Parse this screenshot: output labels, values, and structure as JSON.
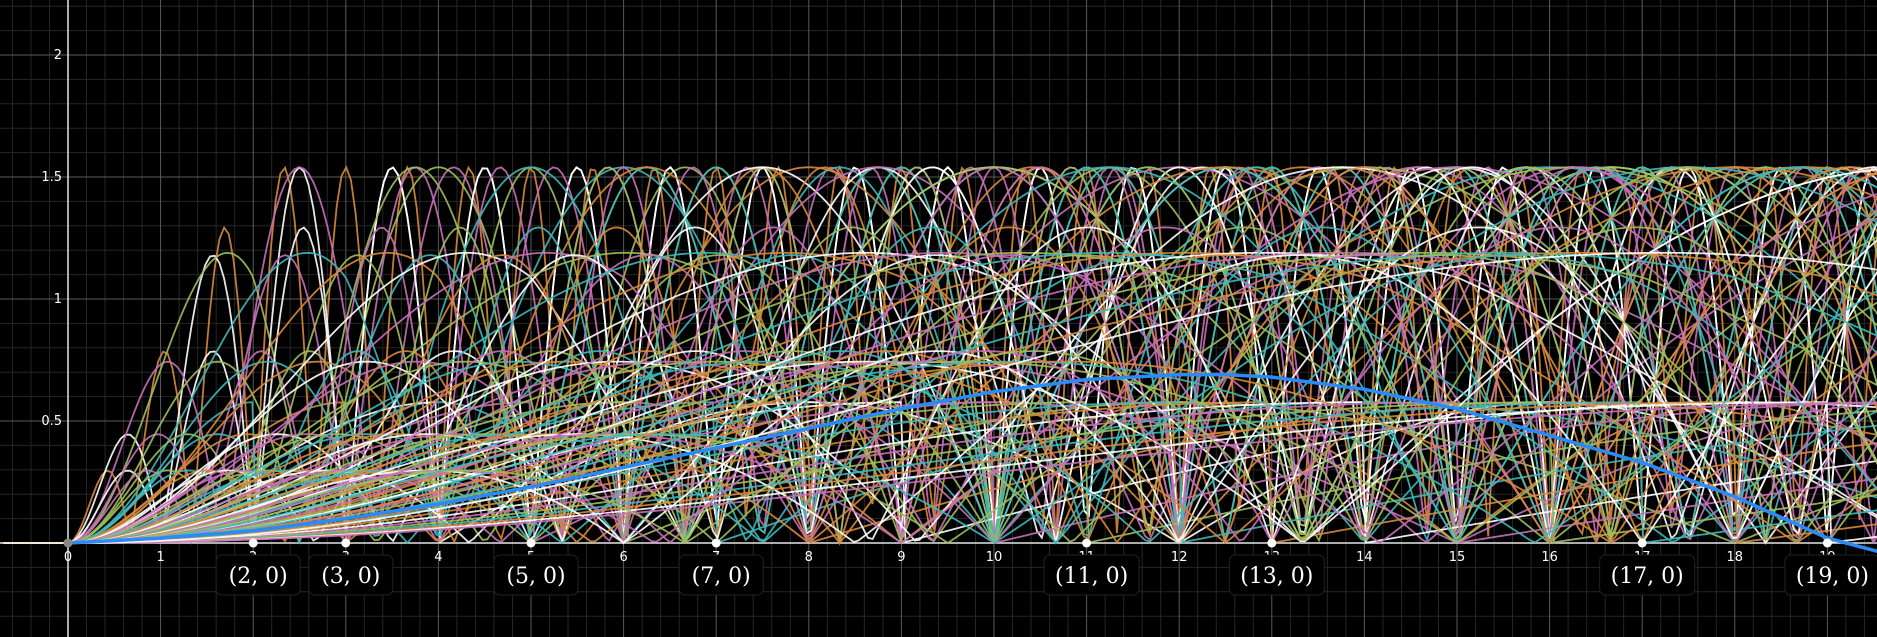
{
  "chart_data": {
    "type": "line",
    "title": "",
    "xlabel": "",
    "ylabel": "",
    "xlim": [
      -0.7,
      19.6
    ],
    "ylim": [
      -0.38,
      2.22
    ],
    "grid": true,
    "x_ticks": [
      {
        "value": 0,
        "label": "0"
      },
      {
        "value": 1,
        "label": "1"
      },
      {
        "value": 2,
        "label": "2"
      },
      {
        "value": 3,
        "label": "3"
      },
      {
        "value": 4,
        "label": "4"
      },
      {
        "value": 5,
        "label": "5"
      },
      {
        "value": 6,
        "label": "6"
      },
      {
        "value": 7,
        "label": "7"
      },
      {
        "value": 8,
        "label": "8"
      },
      {
        "value": 9,
        "label": "9"
      },
      {
        "value": 10,
        "label": "10"
      },
      {
        "value": 11,
        "label": "11"
      },
      {
        "value": 12,
        "label": "12"
      },
      {
        "value": 13,
        "label": "13"
      },
      {
        "value": 14,
        "label": "14"
      },
      {
        "value": 15,
        "label": "15"
      },
      {
        "value": 16,
        "label": "16"
      },
      {
        "value": 17,
        "label": "17"
      },
      {
        "value": 18,
        "label": "18"
      },
      {
        "value": 19,
        "label": "19"
      }
    ],
    "y_ticks": [
      {
        "value": 0.5,
        "label": "0.5"
      },
      {
        "value": 1,
        "label": "1"
      },
      {
        "value": 1.5,
        "label": "1.5"
      },
      {
        "value": 2,
        "label": "2"
      }
    ],
    "labeled_points": [
      {
        "x": 2,
        "y": 0,
        "label": "(2, 0)"
      },
      {
        "x": 3,
        "y": 0,
        "label": "(3, 0)"
      },
      {
        "x": 5,
        "y": 0,
        "label": "(5, 0)"
      },
      {
        "x": 7,
        "y": 0,
        "label": "(7, 0)"
      },
      {
        "x": 11,
        "y": 0,
        "label": "(11, 0)"
      },
      {
        "x": 13,
        "y": 0,
        "label": "(13, 0)"
      },
      {
        "x": 17,
        "y": 0,
        "label": "(17, 0)"
      },
      {
        "x": 19,
        "y": 0,
        "label": "(19, 0)"
      }
    ],
    "main_curve": {
      "color": "#2a8af6",
      "x": [
        0,
        1,
        2,
        3,
        4,
        5,
        6,
        7,
        8,
        9,
        10,
        11,
        12,
        12.5,
        13,
        14,
        15,
        16,
        17,
        18,
        19,
        19.6
      ],
      "y": [
        0,
        0.02,
        0.05,
        0.1,
        0.16,
        0.23,
        0.31,
        0.39,
        0.47,
        0.55,
        0.62,
        0.67,
        0.69,
        0.69,
        0.68,
        0.63,
        0.55,
        0.44,
        0.33,
        0.19,
        0.02,
        -0.04
      ]
    },
    "family_curves": {
      "colors": [
        "#3fb8b8",
        "#d78a3c",
        "#ffffff",
        "#c870b8",
        "#9fbf5c"
      ],
      "n_values": [
        2,
        3,
        4,
        5,
        6,
        7,
        8,
        9,
        10,
        11,
        12,
        13,
        14,
        15,
        16,
        17,
        18,
        19,
        20
      ],
      "multipliers": [
        1,
        2,
        3,
        5,
        8
      ],
      "peak_levels": [
        0.577,
        1.54
      ]
    }
  }
}
